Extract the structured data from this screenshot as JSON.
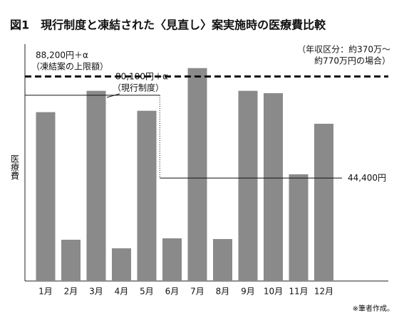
{
  "chart_data": {
    "type": "bar",
    "title": "図1　現行制度と凍結された〈見直し〉案実施時の医療費比較",
    "note": [
      "（年収区分：約370万～",
      "約770万円の場合）"
    ],
    "y_label": "医療費",
    "footer": "※筆者作成。",
    "categories": [
      "1月",
      "2月",
      "3月",
      "4月",
      "5月",
      "6月",
      "7月",
      "8月",
      "9月",
      "10月",
      "11月",
      "12月"
    ],
    "values": [
      72800,
      17800,
      82000,
      14100,
      73400,
      18400,
      91800,
      18100,
      82000,
      81000,
      46000,
      67800
    ],
    "color": "#8a8a8a",
    "ylim": [
      0,
      100000
    ],
    "reference_line": {
      "value": 88200,
      "label": "88,200円＋α",
      "sublabel": "（凍結案の上限額）",
      "style": "dashed"
    },
    "step_line": {
      "values": [
        80100,
        44400
      ],
      "labels": [
        "80,100円＋α",
        "44,400円"
      ],
      "sublabel": "（現行制度）"
    }
  }
}
